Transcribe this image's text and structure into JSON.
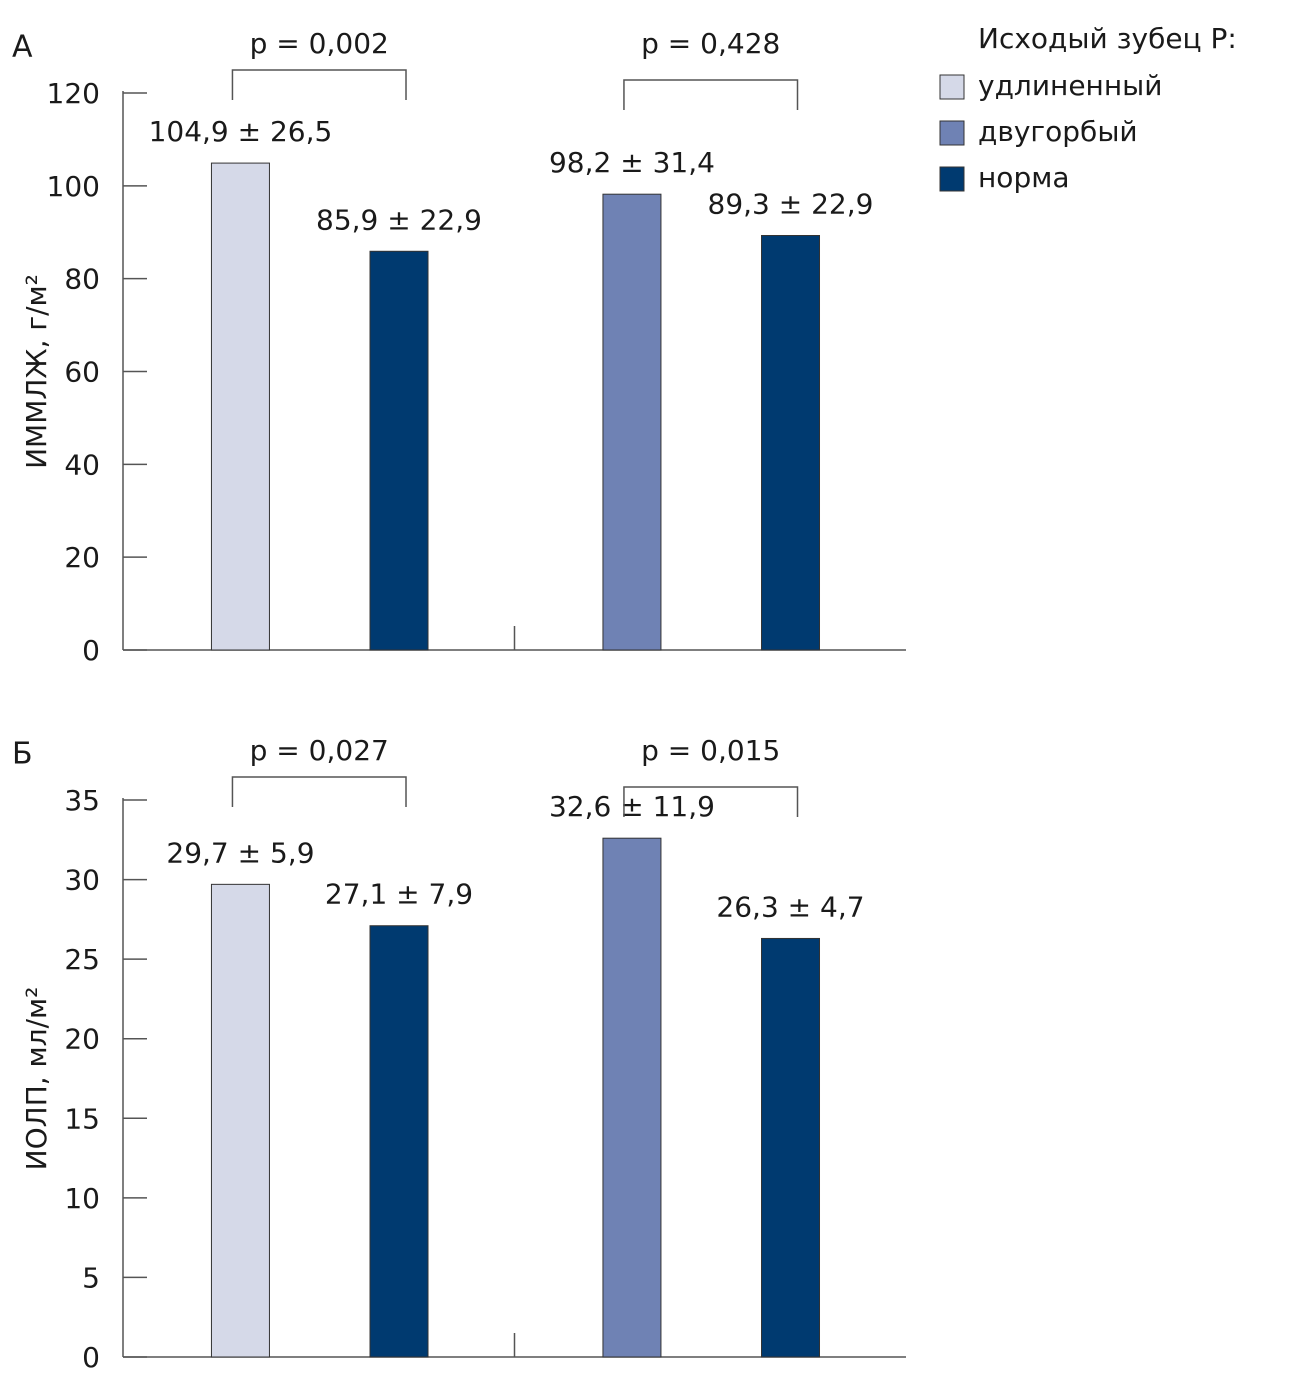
{
  "chart_data": [
    {
      "type": "bar",
      "title": "А",
      "y_label": "ИММЛЖ, г/м²",
      "legend_title": "Исходый зубец Р:",
      "categories": [
        null,
        null
      ],
      "series": [
        {
          "name": "удлиненный",
          "color": "#d5d9e8",
          "values": [
            104.9,
            null
          ],
          "value_labels": [
            "104,9 ± 26,5",
            null
          ]
        },
        {
          "name": "двугорбый",
          "color": "#6f82b4",
          "values": [
            null,
            98.2
          ],
          "value_labels": [
            null,
            "98,2 ± 31,4"
          ]
        },
        {
          "name": "норма",
          "color": "#003a70",
          "values": [
            85.9,
            89.3
          ],
          "value_labels": [
            "85,9 ± 22,9",
            "89,3 ± 22,9"
          ]
        }
      ],
      "annotations": [
        "p = 0,002",
        "p = 0,428"
      ],
      "ylim": [
        0,
        120
      ],
      "yticks": [
        0,
        20,
        40,
        60,
        80,
        100,
        120
      ]
    },
    {
      "type": "bar",
      "title": "Б",
      "y_label": "ИОЛП, мл/м²",
      "categories": [
        null,
        null
      ],
      "series": [
        {
          "color": "#d5d9e8",
          "values": [
            29.7,
            null
          ],
          "value_labels": [
            "29,7 ± 5,9",
            null
          ]
        },
        {
          "color": "#6f82b4",
          "values": [
            null,
            32.6
          ],
          "value_labels": [
            null,
            "32,6 ± 11,9"
          ]
        },
        {
          "color": "#003a70",
          "values": [
            27.1,
            26.3
          ],
          "value_labels": [
            "27,1 ± 7,9",
            "26,3 ± 4,7"
          ]
        }
      ],
      "annotations": [
        "p = 0,027",
        "p = 0,015"
      ],
      "ylim": [
        0,
        35
      ],
      "yticks": [
        0,
        5,
        10,
        15,
        20,
        25,
        30,
        35
      ]
    }
  ]
}
